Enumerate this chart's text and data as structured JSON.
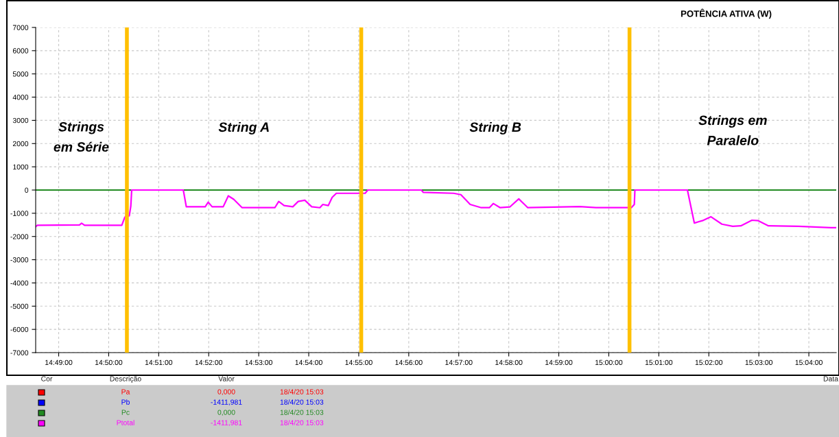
{
  "chart_data": {
    "type": "line",
    "title": "POTÊNCIA ATIVA (W)",
    "xlim": [
      14.809,
      15.0758
    ],
    "ylim": [
      -7000,
      7000
    ],
    "xticks": [
      {
        "value": 14.816667,
        "label": "14:49:00"
      },
      {
        "value": 14.833333,
        "label": "14:50:00"
      },
      {
        "value": 14.85,
        "label": "14:51:00"
      },
      {
        "value": 14.866667,
        "label": "14:52:00"
      },
      {
        "value": 14.883333,
        "label": "14:53:00"
      },
      {
        "value": 14.9,
        "label": "14:54:00"
      },
      {
        "value": 14.916667,
        "label": "14:55:00"
      },
      {
        "value": 14.933333,
        "label": "14:56:00"
      },
      {
        "value": 14.95,
        "label": "14:57:00"
      },
      {
        "value": 14.966667,
        "label": "14:58:00"
      },
      {
        "value": 14.983333,
        "label": "14:59:00"
      },
      {
        "value": 15.0,
        "label": "15:00:00"
      },
      {
        "value": 15.016667,
        "label": "15:01:00"
      },
      {
        "value": 15.033333,
        "label": "15:02:00"
      },
      {
        "value": 15.05,
        "label": "15:03:00"
      },
      {
        "value": 15.066667,
        "label": "15:04:00"
      }
    ],
    "yticks": [
      -7000,
      -6000,
      -5000,
      -4000,
      -3000,
      -2000,
      -1000,
      0,
      1000,
      2000,
      3000,
      4000,
      5000,
      6000,
      7000
    ],
    "grid": true,
    "legend": "bottom",
    "line_style": "solid",
    "series": [
      {
        "name": "Pa",
        "color": "#ff0000"
      },
      {
        "name": "Pb",
        "color": "#0000ff"
      },
      {
        "name": "Pc",
        "color": "#228b22",
        "x": [
          14.809,
          15.0758
        ],
        "values": [
          0,
          0
        ]
      },
      {
        "name": "Ptotal",
        "color": "#ff00ff",
        "x": [
          14.809,
          14.8095,
          14.8236,
          14.8243,
          14.8253,
          14.8377,
          14.8387,
          14.8393,
          14.8402,
          14.8407,
          14.841,
          14.8582,
          14.8592,
          14.8655,
          14.8665,
          14.8678,
          14.8715,
          14.8732,
          14.875,
          14.8778,
          14.8887,
          14.89,
          14.8918,
          14.8947,
          14.8965,
          14.8987,
          14.901,
          14.9037,
          14.9047,
          14.9065,
          14.9078,
          14.9092,
          14.9188,
          14.9197,
          14.9375,
          14.9382,
          14.9483,
          14.9507,
          14.9538,
          14.9575,
          14.9602,
          14.9615,
          14.9638,
          14.967,
          14.97,
          14.973,
          14.9903,
          14.9957,
          15.0075,
          15.0085,
          15.0087,
          15.0262,
          15.0272,
          15.0285,
          15.0312,
          15.034,
          15.0377,
          15.0413,
          15.044,
          15.0477,
          15.0498,
          15.0532,
          15.0632,
          15.074,
          15.0758
        ],
        "values": [
          -1580,
          -1520,
          -1500,
          -1430,
          -1520,
          -1520,
          -1170,
          -1110,
          -1110,
          -700,
          0,
          0,
          -720,
          -720,
          -520,
          -720,
          -720,
          -250,
          -400,
          -760,
          -760,
          -490,
          -670,
          -720,
          -490,
          -440,
          -720,
          -760,
          -620,
          -670,
          -320,
          -140,
          -140,
          0,
          0,
          -100,
          -140,
          -200,
          -620,
          -760,
          -760,
          -580,
          -760,
          -730,
          -380,
          -760,
          -710,
          -760,
          -760,
          -620,
          0,
          0,
          -620,
          -1420,
          -1320,
          -1150,
          -1470,
          -1560,
          -1540,
          -1300,
          -1320,
          -1540,
          -1560,
          -1620,
          -1620
        ]
      }
    ],
    "ref_lines": [
      {
        "axis": "x",
        "value": 14.8394,
        "color": "#ffc000"
      },
      {
        "axis": "x",
        "value": 14.9175,
        "color": "#ffc000"
      },
      {
        "axis": "x",
        "value": 15.0069,
        "color": "#ffc000"
      }
    ],
    "annotations": [
      "Strings\nem Série",
      "String A",
      "String B",
      "Strings em\nParalelo",
      "Cor",
      "Descrição",
      "Valor",
      "Data",
      "0,000",
      "18/4/20 15:03",
      "-1411,981",
      "18/4/20 15:03",
      "0,000",
      "18/4/20 15:03",
      "-1411,981",
      "18/4/20 15:03"
    ]
  }
}
